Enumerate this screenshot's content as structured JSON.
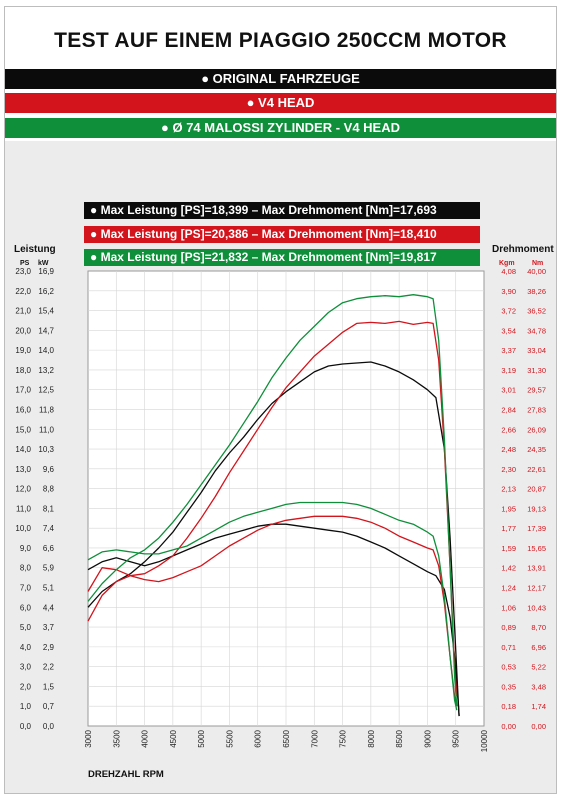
{
  "title": "TEST AUF EINEM PIAGGIO 250CCM MOTOR",
  "bands": [
    {
      "label": "● ORIGINAL FAHRZEUGE",
      "color": "#0b0b0b"
    },
    {
      "label": "● V4 HEAD",
      "color": "#d4141c"
    },
    {
      "label": "● Ø 74 MALOSSI ZYLINDER - V4 HEAD",
      "color": "#0f8f3a"
    }
  ],
  "legend": [
    "● Max Leistung [PS]=18,399 – Max Drehmoment [Nm]=17,693",
    "● Max Leistung [PS]=20,386 – Max Drehmoment [Nm]=18,410",
    "● Max Leistung [PS]=21,832 – Max Drehmoment [Nm]=19,817"
  ],
  "chart_data": {
    "type": "line",
    "xlabel": "DREHZAHL RPM",
    "xlim": [
      3000,
      10000
    ],
    "x_ticks": [
      "3000",
      "3500",
      "4000",
      "4500",
      "5000",
      "5500",
      "6000",
      "6500",
      "7000",
      "7500",
      "8000",
      "8500",
      "9000",
      "9500",
      "10000"
    ],
    "ylim": [
      0,
      23
    ],
    "left_axis_title": "Leistung",
    "left_unit_ps": "PS",
    "left_unit_kw": "kW",
    "left_ticks_ps": [
      "0,0",
      "1,0",
      "2,0",
      "3,0",
      "4,0",
      "5,0",
      "6,0",
      "7,0",
      "8,0",
      "9,0",
      "10,0",
      "11,0",
      "12,0",
      "13,0",
      "14,0",
      "15,0",
      "16,0",
      "17,0",
      "18,0",
      "19,0",
      "20,0",
      "21,0",
      "22,0",
      "23,0"
    ],
    "left_ticks_kw": [
      "0,0",
      "0,7",
      "1,5",
      "2,2",
      "2,9",
      "3,7",
      "4,4",
      "5,1",
      "5,9",
      "6,6",
      "7,4",
      "8,1",
      "8,8",
      "9,6",
      "10,3",
      "11,0",
      "11,8",
      "12,5",
      "13,2",
      "14,0",
      "14,7",
      "15,4",
      "16,2",
      "16,9"
    ],
    "right_axis_title": "Drehmoment",
    "right_unit_kgm": "Kgm",
    "right_unit_nm": "Nm",
    "right_ticks_kgm": [
      "0,00",
      "0,18",
      "0,35",
      "0,53",
      "0,71",
      "0,89",
      "1,06",
      "1,24",
      "1,42",
      "1,59",
      "1,77",
      "1,95",
      "2,13",
      "2,30",
      "2,48",
      "2,66",
      "2,84",
      "3,01",
      "3,19",
      "3,37",
      "3,54",
      "3,72",
      "3,90",
      "4,08"
    ],
    "right_ticks_nm": [
      "0,00",
      "1,74",
      "3,48",
      "5,22",
      "6,96",
      "8,70",
      "10,43",
      "12,17",
      "13,91",
      "15,65",
      "17,39",
      "19,13",
      "20,87",
      "22,61",
      "24,35",
      "26,09",
      "27,83",
      "29,57",
      "31,30",
      "33,04",
      "34,78",
      "36,52",
      "38,26",
      "40,00"
    ],
    "series": [
      {
        "color": "#0b0b0b",
        "kind": "power",
        "points": [
          [
            3000,
            6.0
          ],
          [
            3250,
            6.8
          ],
          [
            3500,
            7.3
          ],
          [
            3750,
            7.7
          ],
          [
            4000,
            8.3
          ],
          [
            4250,
            9.0
          ],
          [
            4500,
            9.8
          ],
          [
            4750,
            10.8
          ],
          [
            5000,
            11.8
          ],
          [
            5250,
            12.9
          ],
          [
            5500,
            13.8
          ],
          [
            5750,
            14.6
          ],
          [
            6000,
            15.5
          ],
          [
            6250,
            16.3
          ],
          [
            6500,
            16.9
          ],
          [
            6750,
            17.4
          ],
          [
            7000,
            17.9
          ],
          [
            7250,
            18.2
          ],
          [
            7500,
            18.3
          ],
          [
            7750,
            18.35
          ],
          [
            8000,
            18.4
          ],
          [
            8250,
            18.2
          ],
          [
            8500,
            17.9
          ],
          [
            8750,
            17.5
          ],
          [
            9000,
            17.0
          ],
          [
            9150,
            16.6
          ],
          [
            9300,
            14.0
          ],
          [
            9400,
            9.5
          ],
          [
            9480,
            5.0
          ],
          [
            9550,
            1.0
          ],
          [
            9560,
            0.5
          ]
        ]
      },
      {
        "color": "#0b0b0b",
        "kind": "torque",
        "points": [
          [
            3000,
            7.9
          ],
          [
            3250,
            8.3
          ],
          [
            3500,
            8.5
          ],
          [
            3750,
            8.3
          ],
          [
            4000,
            8.1
          ],
          [
            4250,
            8.3
          ],
          [
            4500,
            8.6
          ],
          [
            4750,
            8.9
          ],
          [
            5000,
            9.2
          ],
          [
            5250,
            9.5
          ],
          [
            5500,
            9.7
          ],
          [
            5750,
            9.9
          ],
          [
            6000,
            10.1
          ],
          [
            6250,
            10.2
          ],
          [
            6500,
            10.2
          ],
          [
            6750,
            10.1
          ],
          [
            7000,
            10.0
          ],
          [
            7250,
            9.9
          ],
          [
            7500,
            9.8
          ],
          [
            7750,
            9.6
          ],
          [
            8000,
            9.3
          ],
          [
            8250,
            9.0
          ],
          [
            8500,
            8.6
          ],
          [
            8750,
            8.2
          ],
          [
            9000,
            7.8
          ],
          [
            9150,
            7.6
          ],
          [
            9300,
            6.9
          ],
          [
            9400,
            5.5
          ],
          [
            9480,
            3.5
          ],
          [
            9550,
            1.0
          ],
          [
            9560,
            0.5
          ]
        ]
      },
      {
        "color": "#d4141c",
        "kind": "power",
        "points": [
          [
            3000,
            5.3
          ],
          [
            3250,
            6.6
          ],
          [
            3500,
            7.3
          ],
          [
            3750,
            7.6
          ],
          [
            4000,
            7.7
          ],
          [
            4250,
            8.1
          ],
          [
            4500,
            8.6
          ],
          [
            4750,
            9.5
          ],
          [
            5000,
            10.5
          ],
          [
            5250,
            11.6
          ],
          [
            5500,
            12.8
          ],
          [
            5750,
            13.9
          ],
          [
            6000,
            15.0
          ],
          [
            6250,
            16.1
          ],
          [
            6500,
            17.1
          ],
          [
            6750,
            17.9
          ],
          [
            7000,
            18.7
          ],
          [
            7250,
            19.3
          ],
          [
            7500,
            19.9
          ],
          [
            7750,
            20.35
          ],
          [
            8000,
            20.4
          ],
          [
            8250,
            20.35
          ],
          [
            8500,
            20.45
          ],
          [
            8750,
            20.3
          ],
          [
            9000,
            20.4
          ],
          [
            9100,
            20.35
          ],
          [
            9200,
            18.5
          ],
          [
            9300,
            14.0
          ],
          [
            9400,
            8.0
          ],
          [
            9480,
            3.0
          ],
          [
            9520,
            1.5
          ]
        ]
      },
      {
        "color": "#d4141c",
        "kind": "torque",
        "points": [
          [
            3000,
            6.8
          ],
          [
            3250,
            8.0
          ],
          [
            3500,
            7.9
          ],
          [
            3750,
            7.6
          ],
          [
            4000,
            7.4
          ],
          [
            4250,
            7.3
          ],
          [
            4500,
            7.5
          ],
          [
            4750,
            7.8
          ],
          [
            5000,
            8.1
          ],
          [
            5250,
            8.6
          ],
          [
            5500,
            9.1
          ],
          [
            5750,
            9.5
          ],
          [
            6000,
            9.9
          ],
          [
            6250,
            10.2
          ],
          [
            6500,
            10.4
          ],
          [
            6750,
            10.5
          ],
          [
            7000,
            10.6
          ],
          [
            7250,
            10.6
          ],
          [
            7500,
            10.6
          ],
          [
            7750,
            10.5
          ],
          [
            8000,
            10.3
          ],
          [
            8250,
            10.0
          ],
          [
            8500,
            9.6
          ],
          [
            8750,
            9.3
          ],
          [
            9000,
            9.0
          ],
          [
            9100,
            8.9
          ],
          [
            9200,
            8.1
          ],
          [
            9300,
            6.2
          ],
          [
            9400,
            3.5
          ],
          [
            9480,
            1.5
          ],
          [
            9520,
            1.0
          ]
        ]
      },
      {
        "color": "#0f8f3a",
        "kind": "power",
        "points": [
          [
            3000,
            6.3
          ],
          [
            3250,
            7.2
          ],
          [
            3500,
            7.9
          ],
          [
            3750,
            8.5
          ],
          [
            4000,
            8.9
          ],
          [
            4250,
            9.5
          ],
          [
            4500,
            10.3
          ],
          [
            4750,
            11.2
          ],
          [
            5000,
            12.2
          ],
          [
            5250,
            13.2
          ],
          [
            5500,
            14.2
          ],
          [
            5750,
            15.3
          ],
          [
            6000,
            16.4
          ],
          [
            6250,
            17.6
          ],
          [
            6500,
            18.6
          ],
          [
            6750,
            19.5
          ],
          [
            7000,
            20.2
          ],
          [
            7250,
            20.9
          ],
          [
            7500,
            21.4
          ],
          [
            7750,
            21.6
          ],
          [
            8000,
            21.7
          ],
          [
            8250,
            21.75
          ],
          [
            8500,
            21.7
          ],
          [
            8750,
            21.8
          ],
          [
            9000,
            21.7
          ],
          [
            9100,
            21.6
          ],
          [
            9200,
            19.5
          ],
          [
            9300,
            14.5
          ],
          [
            9400,
            8.0
          ],
          [
            9480,
            2.5
          ],
          [
            9520,
            1.0
          ]
        ]
      },
      {
        "color": "#0f8f3a",
        "kind": "torque",
        "points": [
          [
            3000,
            8.4
          ],
          [
            3250,
            8.8
          ],
          [
            3500,
            8.9
          ],
          [
            3750,
            8.8
          ],
          [
            4000,
            8.7
          ],
          [
            4250,
            8.7
          ],
          [
            4500,
            8.9
          ],
          [
            4750,
            9.1
          ],
          [
            5000,
            9.5
          ],
          [
            5250,
            9.9
          ],
          [
            5500,
            10.3
          ],
          [
            5750,
            10.6
          ],
          [
            6000,
            10.8
          ],
          [
            6250,
            11.0
          ],
          [
            6500,
            11.2
          ],
          [
            6750,
            11.3
          ],
          [
            7000,
            11.3
          ],
          [
            7250,
            11.3
          ],
          [
            7500,
            11.3
          ],
          [
            7750,
            11.2
          ],
          [
            8000,
            11.0
          ],
          [
            8250,
            10.7
          ],
          [
            8500,
            10.4
          ],
          [
            8750,
            10.2
          ],
          [
            9000,
            9.8
          ],
          [
            9100,
            9.6
          ],
          [
            9200,
            8.6
          ],
          [
            9300,
            6.5
          ],
          [
            9400,
            3.5
          ],
          [
            9480,
            1.3
          ],
          [
            9520,
            0.8
          ]
        ]
      }
    ]
  }
}
